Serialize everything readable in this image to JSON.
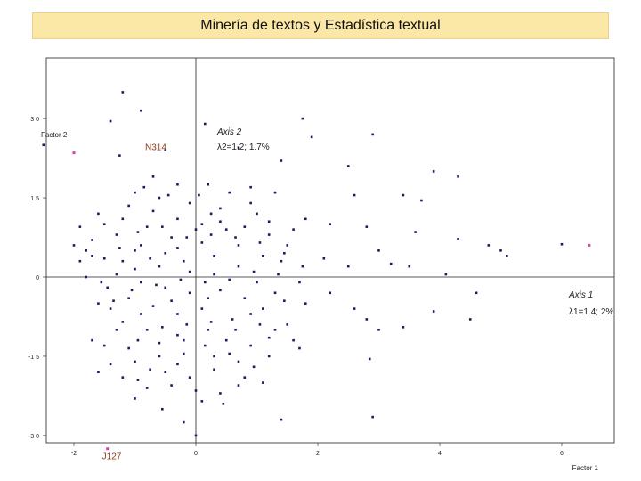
{
  "chart_data": {
    "type": "scatter",
    "title": "Minería de textos y Estadística textual",
    "xlabel": "Factor 1",
    "ylabel": "Factor 2",
    "xlim": [
      -2.5,
      6.9
    ],
    "ylim": [
      -3.1,
      3.5
    ],
    "x_ticks": [
      {
        "value": -2,
        "label": "-2"
      },
      {
        "value": 0,
        "label": "0"
      },
      {
        "value": 2,
        "label": "2"
      },
      {
        "value": 4,
        "label": "4"
      },
      {
        "value": 6,
        "label": "6"
      }
    ],
    "y_ticks": [
      {
        "value": 3.0,
        "label": "3 0"
      },
      {
        "value": 1.5,
        "label": "1 5"
      },
      {
        "value": 0,
        "label": "0"
      },
      {
        "value": -1.5,
        "label": "-1 5"
      },
      {
        "value": -3.0,
        "label": "-3 0"
      }
    ],
    "axis_annotations": {
      "axis2_name": "Axis 2",
      "axis2_lambda": "λ2=1.2; 1.7%",
      "axis1_name": "Axis 1",
      "axis1_lambda": "λ1=1.4; 2%"
    },
    "grid": false,
    "colors": {
      "points": "#1a1a5e",
      "highlight": "#e040a0",
      "label": "#8b3a1a"
    },
    "highlighted_points": [
      {
        "label": "N314",
        "x": -2.0,
        "y": 2.35
      },
      {
        "label": "J127",
        "x": -1.45,
        "y": -3.25
      },
      {
        "label": "",
        "x": 6.45,
        "y": 0.6
      }
    ],
    "series": [
      {
        "points": [
          [
            -1.2,
            3.5
          ],
          [
            -0.9,
            3.15
          ],
          [
            -1.4,
            2.95
          ],
          [
            0.15,
            2.9
          ],
          [
            -2.5,
            2.5
          ],
          [
            -2.0,
            2.35
          ],
          [
            -1.25,
            2.3
          ],
          [
            1.75,
            3.0
          ],
          [
            2.9,
            2.7
          ],
          [
            1.9,
            2.65
          ],
          [
            -0.5,
            2.4
          ],
          [
            0.7,
            2.45
          ],
          [
            1.4,
            2.2
          ],
          [
            2.5,
            2.1
          ],
          [
            3.9,
            2.0
          ],
          [
            4.3,
            1.9
          ],
          [
            0.2,
            1.75
          ],
          [
            0.9,
            1.7
          ],
          [
            1.3,
            1.6
          ],
          [
            2.6,
            1.55
          ],
          [
            3.4,
            1.55
          ],
          [
            3.7,
            1.45
          ],
          [
            0.4,
            1.3
          ],
          [
            1.0,
            1.2
          ],
          [
            1.8,
            1.1
          ],
          [
            2.2,
            1.0
          ],
          [
            2.8,
            0.95
          ],
          [
            3.6,
            0.85
          ],
          [
            4.3,
            0.72
          ],
          [
            4.8,
            0.6
          ],
          [
            5.0,
            0.5
          ],
          [
            5.1,
            0.4
          ],
          [
            6.0,
            0.62
          ],
          [
            3.0,
            0.5
          ],
          [
            2.1,
            0.35
          ],
          [
            1.4,
            0.3
          ],
          [
            2.5,
            0.2
          ],
          [
            3.2,
            0.25
          ],
          [
            3.5,
            0.2
          ],
          [
            4.1,
            0.05
          ],
          [
            4.6,
            -0.3
          ],
          [
            3.9,
            -0.65
          ],
          [
            4.5,
            -0.8
          ],
          [
            3.4,
            -0.95
          ],
          [
            2.8,
            -0.8
          ],
          [
            1.8,
            -0.5
          ],
          [
            2.2,
            -0.3
          ],
          [
            2.6,
            -0.6
          ],
          [
            3.0,
            -1.0
          ],
          [
            2.85,
            -1.55
          ],
          [
            1.7,
            -1.35
          ],
          [
            1.3,
            -1.0
          ],
          [
            0.8,
            -1.9
          ],
          [
            0.1,
            -2.35
          ],
          [
            -0.2,
            -2.75
          ],
          [
            1.4,
            -2.7
          ],
          [
            2.9,
            -2.65
          ],
          [
            0.4,
            -2.2
          ],
          [
            0.0,
            -3.0
          ],
          [
            -1.0,
            -2.3
          ],
          [
            -1.4,
            -1.65
          ],
          [
            -1.6,
            -1.8
          ],
          [
            -1.7,
            -1.2
          ],
          [
            -1.6,
            -0.5
          ],
          [
            -1.8,
            0.0
          ],
          [
            -1.5,
            0.35
          ],
          [
            -1.7,
            0.7
          ],
          [
            -1.9,
            0.95
          ],
          [
            -1.6,
            1.2
          ],
          [
            -1.2,
            1.1
          ],
          [
            -1.0,
            1.6
          ],
          [
            -0.7,
            1.9
          ],
          [
            -0.85,
            1.7
          ],
          [
            -0.3,
            1.75
          ],
          [
            -0.6,
            1.5
          ],
          [
            -0.1,
            1.4
          ],
          [
            0.25,
            1.2
          ],
          [
            0.5,
            0.9
          ],
          [
            0.7,
            0.6
          ],
          [
            0.3,
            0.4
          ],
          [
            -0.2,
            0.3
          ],
          [
            -0.6,
            0.2
          ],
          [
            -1.0,
            0.15
          ],
          [
            -1.3,
            0.05
          ],
          [
            -0.9,
            -0.1
          ],
          [
            -0.5,
            -0.2
          ],
          [
            -0.1,
            -0.3
          ],
          [
            0.4,
            -0.25
          ],
          [
            0.8,
            -0.4
          ],
          [
            1.1,
            -0.6
          ],
          [
            0.6,
            -0.8
          ],
          [
            0.2,
            -1.0
          ],
          [
            -0.3,
            -1.1
          ],
          [
            -0.8,
            -1.0
          ],
          [
            -1.2,
            -0.85
          ],
          [
            -1.4,
            -0.6
          ],
          [
            -1.1,
            -0.4
          ],
          [
            -0.7,
            -0.55
          ],
          [
            -0.3,
            -0.7
          ],
          [
            0.1,
            -0.6
          ],
          [
            0.5,
            -1.2
          ],
          [
            0.9,
            -1.3
          ],
          [
            1.2,
            -1.5
          ],
          [
            0.7,
            -1.6
          ],
          [
            0.3,
            -1.5
          ],
          [
            -0.2,
            -1.45
          ],
          [
            -0.6,
            -1.5
          ],
          [
            -1.0,
            -1.6
          ],
          [
            -0.5,
            -1.8
          ],
          [
            -0.1,
            -1.9
          ],
          [
            0.3,
            -1.75
          ],
          [
            0.7,
            -2.05
          ],
          [
            1.1,
            -2.0
          ],
          [
            -0.4,
            -2.05
          ],
          [
            -0.8,
            -2.1
          ],
          [
            -1.1,
            -1.35
          ],
          [
            -0.9,
            0.6
          ],
          [
            -0.4,
            0.75
          ],
          [
            0.0,
            0.9
          ],
          [
            0.4,
            1.05
          ],
          [
            0.8,
            0.95
          ],
          [
            1.2,
            0.8
          ],
          [
            1.5,
            0.6
          ],
          [
            1.1,
            0.4
          ],
          [
            0.7,
            0.2
          ],
          [
            0.3,
            0.05
          ],
          [
            -0.1,
            0.1
          ],
          [
            -0.5,
            0.45
          ],
          [
            -1.0,
            0.5
          ],
          [
            -1.3,
            0.8
          ],
          [
            -1.5,
            1.0
          ],
          [
            -1.1,
            1.35
          ],
          [
            -0.7,
            1.25
          ],
          [
            -0.3,
            1.1
          ],
          [
            0.1,
            1.0
          ],
          [
            0.9,
            1.4
          ],
          [
            1.2,
            1.05
          ],
          [
            1.6,
            0.9
          ],
          [
            1.0,
            -0.1
          ],
          [
            1.3,
            -0.3
          ],
          [
            0.9,
            -0.7
          ],
          [
            1.5,
            -0.9
          ],
          [
            1.2,
            -1.15
          ],
          [
            1.6,
            -1.2
          ],
          [
            0.2,
            -0.4
          ],
          [
            -0.4,
            -0.45
          ],
          [
            -0.9,
            -0.7
          ],
          [
            -1.3,
            -1.0
          ],
          [
            -1.5,
            -1.3
          ],
          [
            -0.6,
            -1.25
          ],
          [
            -0.2,
            -1.2
          ],
          [
            0.15,
            -1.3
          ],
          [
            0.55,
            -1.45
          ],
          [
            0.95,
            -1.7
          ],
          [
            -0.3,
            -1.65
          ],
          [
            -0.75,
            -1.75
          ],
          [
            -0.95,
            -1.95
          ],
          [
            -1.2,
            -1.9
          ],
          [
            0.0,
            -2.15
          ],
          [
            0.45,
            -2.4
          ],
          [
            -0.55,
            -2.5
          ],
          [
            -1.7,
            0.4
          ],
          [
            -1.9,
            0.3
          ],
          [
            -2.0,
            0.6
          ],
          [
            -1.8,
            0.5
          ],
          [
            -0.8,
            0.95
          ],
          [
            -0.45,
            1.55
          ],
          [
            0.05,
            1.55
          ],
          [
            0.55,
            1.6
          ],
          [
            0.1,
            0.65
          ],
          [
            -0.3,
            0.55
          ],
          [
            -0.75,
            0.35
          ],
          [
            -1.2,
            0.3
          ],
          [
            -1.45,
            -0.2
          ],
          [
            -1.05,
            -0.25
          ],
          [
            -0.65,
            -0.15
          ],
          [
            -0.25,
            -0.05
          ],
          [
            0.15,
            -0.1
          ],
          [
            0.55,
            -0.05
          ],
          [
            0.95,
            0.1
          ],
          [
            1.35,
            0.05
          ],
          [
            1.75,
            0.2
          ],
          [
            1.7,
            -0.1
          ],
          [
            1.45,
            -0.45
          ],
          [
            1.05,
            -0.9
          ],
          [
            0.65,
            -1.0
          ],
          [
            0.25,
            -0.85
          ],
          [
            -0.15,
            -0.9
          ],
          [
            -0.55,
            -0.95
          ],
          [
            -0.95,
            -1.2
          ],
          [
            -1.35,
            -0.45
          ],
          [
            -1.55,
            -0.1
          ],
          [
            -1.25,
            0.55
          ],
          [
            -0.95,
            0.85
          ],
          [
            -0.55,
            0.95
          ],
          [
            -0.15,
            0.75
          ],
          [
            0.25,
            0.8
          ],
          [
            0.65,
            0.75
          ],
          [
            1.05,
            0.65
          ],
          [
            1.45,
            0.45
          ]
        ]
      }
    ]
  }
}
